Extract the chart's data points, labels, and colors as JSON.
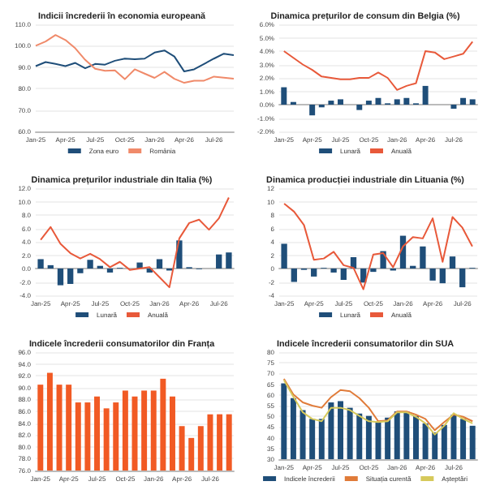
{
  "chart_data": [
    {
      "type": "line",
      "title": "Indicii încrederii în economia europeană",
      "categories": [
        "Jan-25",
        null,
        null,
        "Apr-25",
        null,
        null,
        "Jul-25",
        null,
        null,
        "Oct-25",
        null,
        null,
        "Jan-26",
        null,
        null,
        "Apr-26",
        null,
        null,
        "Jul-26",
        null,
        null
      ],
      "series": [
        {
          "name": "Zona euro",
          "color": "#1f4e79",
          "values": [
            90.5,
            92.4,
            91.5,
            90.5,
            92,
            89.5,
            91.5,
            91.2,
            93,
            94,
            93.7,
            94,
            96.8,
            97.8,
            95,
            88,
            89,
            91.5,
            94,
            96.3,
            95.6
          ]
        },
        {
          "name": "România",
          "color": "#f08a6a",
          "values": [
            100,
            102,
            105,
            102.7,
            98.8,
            93.4,
            89.3,
            88.3,
            88.5,
            84.4,
            89,
            87,
            85,
            87.8,
            84.6,
            82.7,
            83.7,
            83.7,
            85.6,
            85.1,
            84.6
          ]
        }
      ],
      "ylim": [
        60,
        110
      ],
      "yticks": [
        {
          "value": 60,
          "label": "60.0"
        },
        {
          "value": 70,
          "label": "70.0"
        },
        {
          "value": 80,
          "label": "80.0"
        },
        {
          "value": 90,
          "label": "90.0"
        },
        {
          "value": 100,
          "label": "100.0"
        },
        {
          "value": 110,
          "label": "110.0"
        }
      ],
      "grid": "y",
      "legend": "bottom",
      "marker": "none"
    },
    {
      "type": "bar",
      "title": "Dinamica prețurilor de consum din Belgia (%)",
      "categories": [
        "Jan-25",
        null,
        null,
        "Apr-25",
        null,
        null,
        "Jul-25",
        null,
        null,
        "Oct-25",
        null,
        null,
        "Jan-26",
        null,
        null,
        "Apr-26",
        null,
        null,
        "Jul-26",
        null,
        null
      ],
      "series": [
        {
          "name": "Lunară",
          "color": "#1f4e79",
          "values": [
            1.3,
            0.2,
            0.0,
            -0.8,
            -0.2,
            0.3,
            0.4,
            0.0,
            -0.4,
            0.3,
            0.5,
            0.1,
            0.4,
            0.5,
            0.1,
            1.4,
            0.0,
            0.0,
            -0.3,
            0.5,
            0.4
          ]
        },
        {
          "name": "Anuală",
          "type": "line",
          "color": "#e8593a",
          "values": [
            4.0,
            3.5,
            3.0,
            2.6,
            2.1,
            2.0,
            1.9,
            1.9,
            2.0,
            2.0,
            2.4,
            2.0,
            1.1,
            1.4,
            1.6,
            4.0,
            3.9,
            3.4,
            3.6,
            3.8,
            4.7
          ]
        }
      ],
      "ylim": [
        -2,
        6
      ],
      "yticks": [
        {
          "value": -2,
          "label": "-2.0%"
        },
        {
          "value": -1,
          "label": "-1.0%"
        },
        {
          "value": 0,
          "label": "0.0%"
        },
        {
          "value": 1,
          "label": "1.0%"
        },
        {
          "value": 2,
          "label": "2.0%"
        },
        {
          "value": 3,
          "label": "3.0%"
        },
        {
          "value": 4,
          "label": "4.0%"
        },
        {
          "value": 5,
          "label": "5.0%"
        },
        {
          "value": 6,
          "label": "6.0%"
        }
      ],
      "grid": "y",
      "legend": "bottom",
      "marker": "none"
    },
    {
      "type": "bar",
      "title": "Dinamica prețurilor industriale din Italia (%)",
      "categories": [
        "Jan-25",
        null,
        null,
        "Apr-25",
        null,
        null,
        "Jul-25",
        null,
        null,
        "Oct-25",
        null,
        null,
        "Jan-26",
        null,
        null,
        "Apr-26",
        null,
        null,
        "Jul-26",
        null
      ],
      "series": [
        {
          "name": "Lunară",
          "color": "#1f4e79",
          "values": [
            1.4,
            0.5,
            -2.5,
            -2.3,
            -0.7,
            1.3,
            0.4,
            -0.6,
            0.1,
            0.0,
            0.9,
            -0.6,
            1.4,
            -0.3,
            4.2,
            0.2,
            -0.1,
            0.0,
            2.1,
            2.4
          ]
        },
        {
          "name": "Anuală",
          "type": "line",
          "color": "#e8593a",
          "values": [
            4.3,
            6.2,
            3.7,
            2.3,
            1.5,
            2.2,
            1.4,
            0.2,
            1.0,
            -0.2,
            0.0,
            0.2,
            -1.3,
            -2.8,
            4.5,
            6.8,
            7.3,
            5.8,
            7.5,
            10.6
          ]
        }
      ],
      "ylim": [
        -4,
        12
      ],
      "yticks": [
        {
          "value": -4,
          "label": "-4.0"
        },
        {
          "value": -2,
          "label": "-2.0"
        },
        {
          "value": 0,
          "label": "0.0"
        },
        {
          "value": 2,
          "label": "2.0"
        },
        {
          "value": 4,
          "label": "4.0"
        },
        {
          "value": 6,
          "label": "6.0"
        },
        {
          "value": 8,
          "label": "8.0"
        },
        {
          "value": 10,
          "label": "10.0"
        },
        {
          "value": 12,
          "label": "12.0"
        }
      ],
      "grid": "y",
      "legend": "bottom",
      "marker": "none"
    },
    {
      "type": "bar",
      "title": "Dinamica producției industriale din Lituania (%)",
      "categories": [
        "Jan-25",
        null,
        null,
        "Apr-25",
        null,
        null,
        "Jul-25",
        null,
        null,
        "Oct-25",
        null,
        null,
        "Jan-26",
        null,
        null,
        "Apr-26",
        null,
        null,
        "Jul-26",
        null
      ],
      "series": [
        {
          "name": "Lunară",
          "color": "#1f4e79",
          "values": [
            3.7,
            -2.0,
            -0.2,
            -1.2,
            0.1,
            -0.6,
            -1.7,
            1.7,
            -2.1,
            -0.5,
            2.6,
            -0.3,
            4.9,
            0.4,
            3.3,
            -1.8,
            -2.2,
            1.8,
            -2.8,
            0.1
          ]
        },
        {
          "name": "Anuală",
          "type": "line",
          "color": "#e8593a",
          "values": [
            9.7,
            8.5,
            6.5,
            1.3,
            1.5,
            2.5,
            0.5,
            0.1,
            -3.1,
            2.1,
            2.3,
            0.2,
            3.3,
            4.7,
            4.5,
            7.5,
            1.0,
            7.7,
            6.1,
            3.3
          ]
        }
      ],
      "ylim": [
        -4,
        12
      ],
      "yticks": [
        -4,
        -2,
        0,
        2,
        4,
        6,
        8,
        10,
        12
      ],
      "grid": "y",
      "legend": "bottom",
      "marker": "none"
    },
    {
      "type": "bar",
      "title": "Indicele încrederii consumatorilor din Franța",
      "categories": [
        "Jan-25",
        null,
        null,
        "Apr-25",
        null,
        null,
        "Jul-25",
        null,
        null,
        "Oct-25",
        null,
        null,
        "Jan-26",
        null,
        null,
        "Apr-26",
        null,
        null,
        "Jul-26",
        null,
        null
      ],
      "values": [
        90.5,
        92.5,
        90.5,
        90.5,
        87.5,
        87.5,
        88.5,
        86.5,
        87.5,
        89.5,
        88.5,
        89.5,
        89.5,
        91.5,
        88.5,
        83.5,
        81.5,
        83.5,
        85.5,
        85.5,
        85.5
      ],
      "color": "#f15a24",
      "ylim": [
        76,
        96
      ],
      "yticks": [
        {
          "value": 76,
          "label": "76.0"
        },
        {
          "value": 78,
          "label": "78.0"
        },
        {
          "value": 80,
          "label": "80.0"
        },
        {
          "value": 82,
          "label": "82.0"
        },
        {
          "value": 84,
          "label": "84.0"
        },
        {
          "value": 86,
          "label": "86.0"
        },
        {
          "value": 88,
          "label": "88.0"
        },
        {
          "value": 90,
          "label": "90.0"
        },
        {
          "value": 92,
          "label": "92.0"
        },
        {
          "value": 94,
          "label": "94.0"
        },
        {
          "value": 96,
          "label": "96.0"
        }
      ],
      "grid": "y"
    },
    {
      "type": "bar",
      "title": "Indicele încrederii consumatorilor din SUA",
      "categories": [
        "Jan-25",
        null,
        null,
        "Apr-25",
        null,
        null,
        "Jul-25",
        null,
        null,
        "Oct-25",
        null,
        null,
        "Jan-26",
        null,
        null,
        "Apr-26",
        null,
        null,
        "Jul-26",
        null,
        null
      ],
      "series": [
        {
          "name": "Indicele încrederii",
          "color": "#1f4e79",
          "values": [
            65.4,
            58.5,
            52.9,
            48.8,
            48.8,
            56.5,
            57.1,
            54,
            51.3,
            50.2,
            47.7,
            49.4,
            52.3,
            52.3,
            50.2,
            46.7,
            42.5,
            46,
            50.8,
            48.8,
            45.6
          ]
        },
        {
          "name": "Situația curentă",
          "type": "line",
          "color": "#e07b39",
          "values": [
            67.5,
            60.2,
            56.5,
            55,
            54,
            59,
            62.3,
            61.7,
            58.5,
            54,
            47.7,
            48.1,
            52.3,
            52.3,
            50.8,
            48.8,
            43.5,
            47.3,
            50.8,
            49.8,
            47.7
          ]
        },
        {
          "name": "Așteptări",
          "type": "line",
          "color": "#d6c95b",
          "values": [
            66.9,
            59.2,
            51.9,
            48.8,
            47.7,
            54,
            54,
            52.9,
            50.2,
            47.7,
            47.3,
            47.7,
            51.9,
            51.9,
            49.8,
            46.7,
            41.5,
            45.6,
            51.5,
            48.8,
            46.7
          ]
        }
      ],
      "ylim": [
        30,
        80
      ],
      "yticks": [
        30,
        35,
        40,
        45,
        50,
        55,
        60,
        65,
        70,
        75,
        80
      ],
      "grid": "y",
      "legend": "bottom",
      "marker": "none"
    }
  ]
}
